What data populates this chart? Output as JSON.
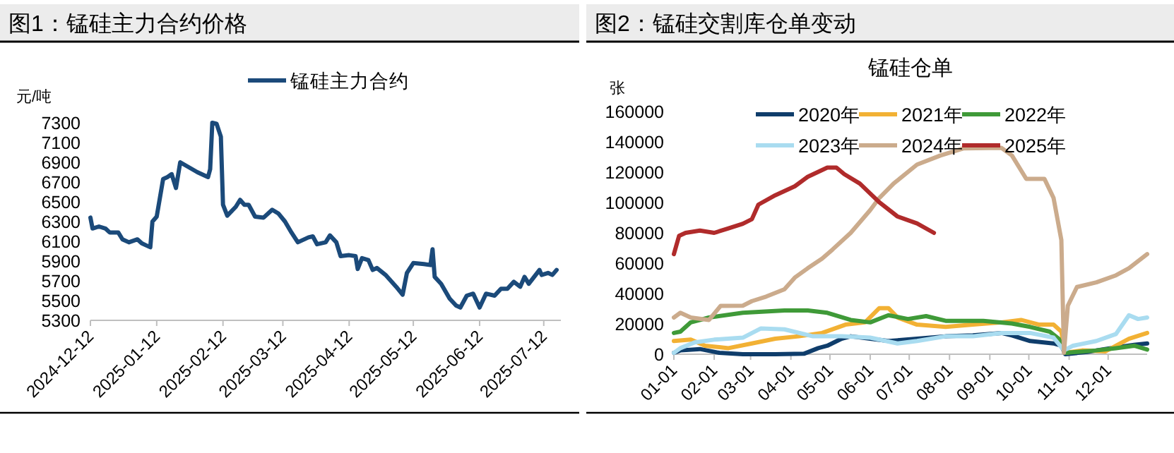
{
  "chart_data": [
    {
      "type": "line",
      "title": "图1：锰硅主力合约价格",
      "ylabel": "元/吨",
      "legend": "top",
      "x": [
        "2024-12-12",
        "2024-12-13",
        "2024-12-16",
        "2024-12-19",
        "2024-12-21",
        "2024-12-25",
        "2024-12-27",
        "2024-12-30",
        "2025-01-03",
        "2025-01-05",
        "2025-01-07",
        "2025-01-09",
        "2025-01-10",
        "2025-01-12",
        "2025-01-15",
        "2025-01-17",
        "2025-01-19",
        "2025-01-21",
        "2025-01-23",
        "2025-01-27",
        "2025-01-31",
        "2025-02-05",
        "2025-02-06",
        "2025-02-07",
        "2025-02-09",
        "2025-02-11",
        "2025-02-12",
        "2025-02-14",
        "2025-02-18",
        "2025-02-20",
        "2025-02-22",
        "2025-02-24",
        "2025-02-27",
        "2025-03-03",
        "2025-03-07",
        "2025-03-10",
        "2025-03-13",
        "2025-03-16",
        "2025-03-19",
        "2025-03-24",
        "2025-03-26",
        "2025-03-28",
        "2025-04-01",
        "2025-04-03",
        "2025-04-06",
        "2025-04-08",
        "2025-04-12",
        "2025-04-15",
        "2025-04-16",
        "2025-04-18",
        "2025-04-21",
        "2025-04-23",
        "2025-04-25",
        "2025-04-29",
        "2025-05-04",
        "2025-05-07",
        "2025-05-09",
        "2025-05-12",
        "2025-05-17",
        "2025-05-20",
        "2025-05-21",
        "2025-05-22",
        "2025-05-25",
        "2025-05-29",
        "2025-06-01",
        "2025-06-03",
        "2025-06-06",
        "2025-06-09",
        "2025-06-12",
        "2025-06-15",
        "2025-06-19",
        "2025-06-22",
        "2025-06-25",
        "2025-06-28",
        "2025-07-01",
        "2025-07-03",
        "2025-07-05",
        "2025-07-10",
        "2025-07-11",
        "2025-07-14",
        "2025-07-16",
        "2025-07-18"
      ],
      "series": [
        {
          "name": "锰硅主力合约",
          "color": "#1b4a7a",
          "values": [
            6340,
            6230,
            6250,
            6230,
            6190,
            6190,
            6120,
            6090,
            6120,
            6080,
            6060,
            6040,
            6300,
            6350,
            6730,
            6750,
            6780,
            6640,
            6900,
            6850,
            6800,
            6750,
            6830,
            7300,
            7290,
            7160,
            6470,
            6360,
            6450,
            6520,
            6470,
            6470,
            6350,
            6340,
            6420,
            6380,
            6300,
            6190,
            6090,
            6140,
            6150,
            6070,
            6090,
            6160,
            6090,
            5950,
            5960,
            5950,
            5820,
            5930,
            5910,
            5810,
            5830,
            5760,
            5640,
            5560,
            5780,
            5880,
            5870,
            5860,
            6020,
            5740,
            5670,
            5520,
            5450,
            5430,
            5550,
            5570,
            5430,
            5570,
            5550,
            5620,
            5620,
            5690,
            5640,
            5740,
            5670,
            5810,
            5760,
            5780,
            5760,
            5810
          ]
        }
      ],
      "xlim": [
        "2024-12-12",
        "2025-07-20"
      ],
      "xticks": [
        "2024-12-12",
        "2025-01-12",
        "2025-02-12",
        "2025-03-12",
        "2025-04-12",
        "2025-05-12",
        "2025-06-12",
        "2025-07-12"
      ],
      "ylim": [
        5300,
        7300
      ],
      "yticks": [
        5300,
        5500,
        5700,
        5900,
        6100,
        6300,
        6500,
        6700,
        6900,
        7100,
        7300
      ]
    },
    {
      "type": "line",
      "title": "图2：锰硅交割库仓单变动",
      "subtitle": "锰硅仓单",
      "ylabel": "张",
      "legend": "top",
      "series": [
        {
          "name": "2020年",
          "color": "#0f3d6b",
          "x": [
            "--01-01",
            "--01-06",
            "--01-21",
            "--02-05",
            "--02-23",
            "--03-20",
            "--04-11",
            "--04-22",
            "--04-29",
            "--05-10",
            "--05-17",
            "--06-01",
            "--06-15",
            "--07-07",
            "--07-29",
            "--08-19",
            "--09-10",
            "--09-18",
            "--10-02",
            "--10-20",
            "--10-26",
            "--10-29",
            "--11-15",
            "--12-03",
            "--12-21",
            "--12-31"
          ],
          "values": [
            900,
            2500,
            3400,
            900,
            0,
            0,
            300,
            4000,
            5600,
            10200,
            11800,
            10200,
            8700,
            10200,
            11800,
            12400,
            14000,
            12400,
            8700,
            7100,
            5600,
            0,
            1500,
            4000,
            6200,
            7100
          ]
        },
        {
          "name": "2021年",
          "color": "#f2b134",
          "x": [
            "--01-01",
            "--01-14",
            "--01-25",
            "--02-12",
            "--03-02",
            "--03-20",
            "--04-07",
            "--04-25",
            "--05-13",
            "--05-28",
            "--06-08",
            "--06-15",
            "--06-22",
            "--07-07",
            "--07-29",
            "--08-19",
            "--09-10",
            "--09-25",
            "--10-09",
            "--10-20",
            "--10-26",
            "--10-29",
            "--11-11",
            "--11-29",
            "--12-17",
            "--12-31"
          ],
          "values": [
            8700,
            9600,
            5600,
            4000,
            7100,
            10200,
            11800,
            14000,
            19500,
            21000,
            30400,
            30400,
            24200,
            19500,
            18000,
            19500,
            21000,
            22600,
            19500,
            19500,
            14900,
            900,
            2500,
            1900,
            10200,
            14000
          ]
        },
        {
          "name": "2022年",
          "color": "#3f9a38",
          "x": [
            "--01-01",
            "--01-06",
            "--01-14",
            "--01-28",
            "--02-23",
            "--03-27",
            "--04-14",
            "--04-29",
            "--05-17",
            "--06-01",
            "--06-15",
            "--06-30",
            "--07-14",
            "--07-29",
            "--08-27",
            "--09-18",
            "--10-02",
            "--10-17",
            "--10-24",
            "--10-29",
            "--11-07",
            "--11-22",
            "--12-07",
            "--12-21",
            "--12-31"
          ],
          "values": [
            14000,
            14900,
            21000,
            24200,
            27300,
            28800,
            28800,
            27300,
            22600,
            21000,
            25700,
            23200,
            25100,
            22000,
            22000,
            20200,
            18000,
            14900,
            10200,
            900,
            1500,
            2500,
            4000,
            5600,
            3100
          ]
        },
        {
          "name": "2023年",
          "color": "#a9dcf0",
          "x": [
            "--01-01",
            "--01-06",
            "--01-17",
            "--02-01",
            "--02-23",
            "--03-09",
            "--03-27",
            "--04-18",
            "--05-10",
            "--06-01",
            "--06-22",
            "--07-07",
            "--07-29",
            "--08-19",
            "--09-10",
            "--10-02",
            "--10-20",
            "--10-28",
            "--11-04",
            "--11-22",
            "--12-07",
            "--12-17",
            "--12-24",
            "--12-31"
          ],
          "values": [
            900,
            4000,
            7800,
            9600,
            10900,
            17000,
            16400,
            11800,
            11800,
            10900,
            7100,
            8700,
            11800,
            11800,
            14000,
            14000,
            10900,
            2500,
            5600,
            8700,
            13300,
            25700,
            23200,
            24200
          ]
        },
        {
          "name": "2024年",
          "color": "#cbab8c",
          "x": [
            "--01-01",
            "--01-06",
            "--01-14",
            "--01-28",
            "--02-06",
            "--02-23",
            "--03-02",
            "--03-13",
            "--03-27",
            "--04-04",
            "--04-14",
            "--04-25",
            "--05-03",
            "--05-17",
            "--06-01",
            "--06-08",
            "--06-19",
            "--07-07",
            "--07-25",
            "--08-12",
            "--09-10",
            "--09-18",
            "--09-29",
            "--10-13",
            "--10-20",
            "--10-26",
            "--10-28",
            "--10-31",
            "--11-07",
            "--11-22",
            "--12-07",
            "--12-17",
            "--12-31"
          ],
          "values": [
            24200,
            27300,
            24200,
            22600,
            31900,
            32000,
            35000,
            38000,
            42800,
            50500,
            56700,
            63000,
            69000,
            80000,
            95000,
            103000,
            112500,
            125000,
            131000,
            135700,
            136000,
            131000,
            115600,
            115600,
            103000,
            75300,
            1000,
            32000,
            44300,
            47400,
            52000,
            56700,
            66000
          ]
        },
        {
          "name": "2025年",
          "color": "#b02b2b",
          "x": [
            "--01-01",
            "--01-05",
            "--01-10",
            "--01-21",
            "--02-01",
            "--02-12",
            "--02-23",
            "--03-02",
            "--03-07",
            "--03-20",
            "--04-04",
            "--04-14",
            "--04-29",
            "--05-06",
            "--05-12",
            "--05-24",
            "--06-08",
            "--06-22",
            "--07-07",
            "--07-20"
          ],
          "values": [
            66000,
            78000,
            80000,
            81500,
            80000,
            83000,
            86000,
            89000,
            98600,
            104800,
            110700,
            117000,
            123000,
            123000,
            118700,
            112500,
            100200,
            90800,
            86200,
            80000
          ]
        }
      ],
      "xlim": [
        "--01-01",
        "--12-31"
      ],
      "xticks": [
        {
          "value": "--01-01",
          "label": "01-01"
        },
        {
          "value": "--02-01",
          "label": "02-01"
        },
        {
          "value": "--03-01",
          "label": "03-01"
        },
        {
          "value": "--04-01",
          "label": "04-01"
        },
        {
          "value": "--05-01",
          "label": "05-01"
        },
        {
          "value": "--06-01",
          "label": "06-01"
        },
        {
          "value": "--07-01",
          "label": "07-01"
        },
        {
          "value": "--08-01",
          "label": "08-01"
        },
        {
          "value": "--09-01",
          "label": "09-01"
        },
        {
          "value": "--10-01",
          "label": "10-01"
        },
        {
          "value": "--11-01",
          "label": "11-01"
        },
        {
          "value": "--12-01",
          "label": "12-01"
        }
      ],
      "ylim": [
        0,
        160000
      ],
      "yticks": [
        0,
        20000,
        40000,
        60000,
        80000,
        100000,
        120000,
        140000,
        160000
      ]
    }
  ]
}
